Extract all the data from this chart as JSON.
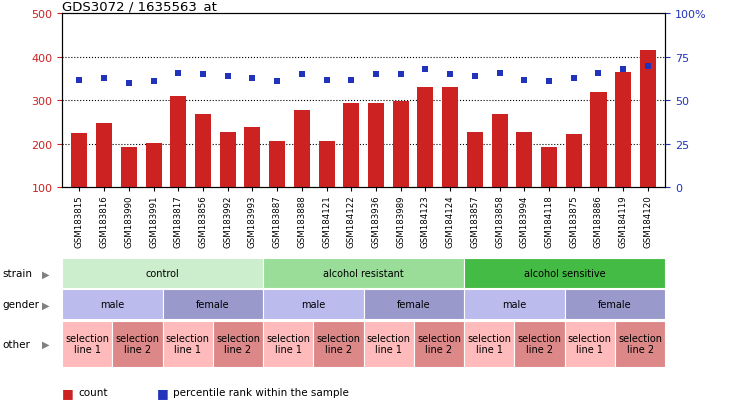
{
  "title": "GDS3072 / 1635563_at",
  "samples": [
    "GSM183815",
    "GSM183816",
    "GSM183990",
    "GSM183991",
    "GSM183817",
    "GSM183856",
    "GSM183992",
    "GSM183993",
    "GSM183887",
    "GSM183888",
    "GSM184121",
    "GSM184122",
    "GSM183936",
    "GSM183989",
    "GSM184123",
    "GSM184124",
    "GSM183857",
    "GSM183858",
    "GSM183994",
    "GSM184118",
    "GSM183875",
    "GSM183886",
    "GSM184119",
    "GSM184120"
  ],
  "bar_values": [
    225,
    248,
    193,
    203,
    310,
    268,
    228,
    240,
    207,
    278,
    207,
    293,
    295,
    298,
    330,
    330,
    227,
    268,
    227,
    192,
    222,
    320,
    365,
    415
  ],
  "dot_values": [
    62,
    63,
    60,
    61,
    66,
    65,
    64,
    63,
    61,
    65,
    62,
    62,
    65,
    65,
    68,
    65,
    64,
    66,
    62,
    61,
    63,
    66,
    68,
    70
  ],
  "bar_color": "#cc2222",
  "dot_color": "#2233bb",
  "ylim_left": [
    100,
    500
  ],
  "ylim_right": [
    0,
    100
  ],
  "yticks_left": [
    100,
    200,
    300,
    400,
    500
  ],
  "yticks_right": [
    0,
    25,
    50,
    75,
    100
  ],
  "ytick_labels_right": [
    "0",
    "25",
    "50",
    "75",
    "100%"
  ],
  "hlines": [
    200,
    300,
    400
  ],
  "strain_groups": [
    {
      "label": "control",
      "start": 0,
      "end": 8,
      "color": "#cceecc"
    },
    {
      "label": "alcohol resistant",
      "start": 8,
      "end": 16,
      "color": "#99dd99"
    },
    {
      "label": "alcohol sensitive",
      "start": 16,
      "end": 24,
      "color": "#44bb44"
    }
  ],
  "gender_groups": [
    {
      "label": "male",
      "start": 0,
      "end": 4,
      "color": "#bbbbee"
    },
    {
      "label": "female",
      "start": 4,
      "end": 8,
      "color": "#9999cc"
    },
    {
      "label": "male",
      "start": 8,
      "end": 12,
      "color": "#bbbbee"
    },
    {
      "label": "female",
      "start": 12,
      "end": 16,
      "color": "#9999cc"
    },
    {
      "label": "male",
      "start": 16,
      "end": 20,
      "color": "#bbbbee"
    },
    {
      "label": "female",
      "start": 20,
      "end": 24,
      "color": "#9999cc"
    }
  ],
  "other_groups": [
    {
      "label": "selection\nline 1",
      "start": 0,
      "end": 2,
      "color": "#ffbbbb"
    },
    {
      "label": "selection\nline 2",
      "start": 2,
      "end": 4,
      "color": "#dd8888"
    },
    {
      "label": "selection\nline 1",
      "start": 4,
      "end": 6,
      "color": "#ffbbbb"
    },
    {
      "label": "selection\nline 2",
      "start": 6,
      "end": 8,
      "color": "#dd8888"
    },
    {
      "label": "selection\nline 1",
      "start": 8,
      "end": 10,
      "color": "#ffbbbb"
    },
    {
      "label": "selection\nline 2",
      "start": 10,
      "end": 12,
      "color": "#dd8888"
    },
    {
      "label": "selection\nline 1",
      "start": 12,
      "end": 14,
      "color": "#ffbbbb"
    },
    {
      "label": "selection\nline 2",
      "start": 14,
      "end": 16,
      "color": "#dd8888"
    },
    {
      "label": "selection\nline 1",
      "start": 16,
      "end": 18,
      "color": "#ffbbbb"
    },
    {
      "label": "selection\nline 2",
      "start": 18,
      "end": 20,
      "color": "#dd8888"
    },
    {
      "label": "selection\nline 1",
      "start": 20,
      "end": 22,
      "color": "#ffbbbb"
    },
    {
      "label": "selection\nline 2",
      "start": 22,
      "end": 24,
      "color": "#dd8888"
    }
  ],
  "row_labels": [
    "strain",
    "gender",
    "other"
  ],
  "legend_items": [
    {
      "label": "count",
      "color": "#cc2222"
    },
    {
      "label": "percentile rank within the sample",
      "color": "#2233bb"
    }
  ],
  "bg_color": "#ffffff",
  "xticklabel_bg": "#cccccc",
  "fig_width": 7.31,
  "fig_height": 4.14,
  "dpi": 100
}
